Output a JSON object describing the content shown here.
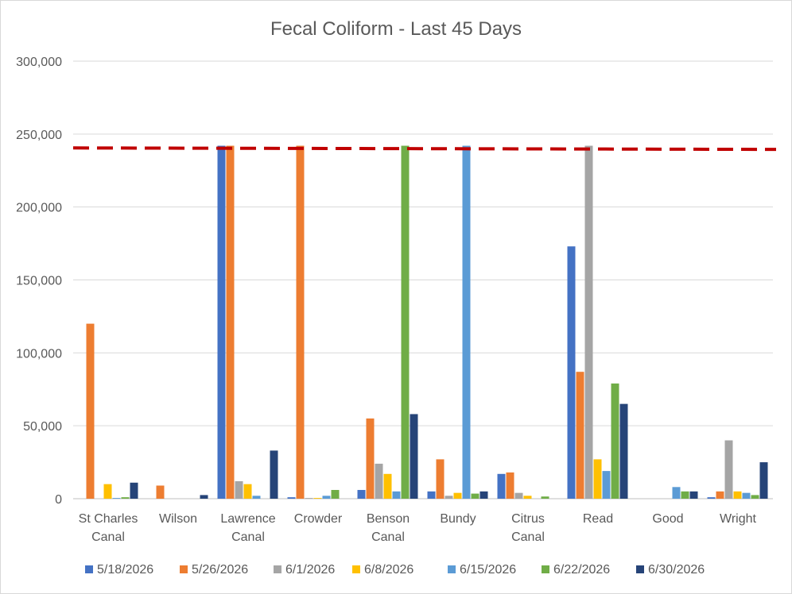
{
  "chart_data": {
    "type": "bar",
    "title": "Fecal Coliform - Last 45 Days",
    "categories": [
      [
        "St Charles",
        "Canal"
      ],
      [
        "Wilson"
      ],
      [
        "Lawrence",
        "Canal"
      ],
      [
        "Crowder"
      ],
      [
        "Benson",
        "Canal"
      ],
      [
        "Bundy"
      ],
      [
        "Citrus",
        "Canal"
      ],
      [
        "Read"
      ],
      [
        "Good"
      ],
      [
        "Wright"
      ]
    ],
    "yticks": [
      "0",
      "50,000",
      "100,000",
      "150,000",
      "200,000",
      "250,000",
      "300,000"
    ],
    "ylim": [
      0,
      300000
    ],
    "grid": true,
    "legend_position": "bottom",
    "threshold_line": {
      "start": 240500,
      "end": 239500,
      "color": "#c00000",
      "style": "dashed"
    },
    "series": [
      {
        "name": "5/18/2026",
        "color": "#4472c4",
        "values": [
          0,
          0,
          242000,
          1000,
          6000,
          5000,
          17000,
          173000,
          0,
          1000
        ]
      },
      {
        "name": "5/26/2026",
        "color": "#ed7d31",
        "values": [
          120000,
          9000,
          242000,
          242000,
          55000,
          27000,
          18000,
          87000,
          0,
          5000
        ]
      },
      {
        "name": "6/1/2026",
        "color": "#a5a5a5",
        "values": [
          0,
          0,
          12000,
          500,
          24000,
          2000,
          4000,
          242000,
          0,
          40000
        ]
      },
      {
        "name": "6/8/2026",
        "color": "#ffc000",
        "values": [
          10000,
          0,
          10000,
          500,
          17000,
          4000,
          2000,
          27000,
          0,
          5000
        ]
      },
      {
        "name": "6/15/2026",
        "color": "#5b9bd5",
        "values": [
          500,
          0,
          2000,
          2000,
          5000,
          242000,
          0,
          19000,
          8000,
          4000
        ]
      },
      {
        "name": "6/22/2026",
        "color": "#70ad47",
        "values": [
          1000,
          0,
          0,
          6000,
          242000,
          3500,
          1500,
          79000,
          5000,
          2500
        ]
      },
      {
        "name": "6/30/2026",
        "color": "#264478",
        "values": [
          11000,
          2500,
          33000,
          0,
          58000,
          5000,
          0,
          65000,
          5000,
          25000
        ]
      }
    ]
  }
}
